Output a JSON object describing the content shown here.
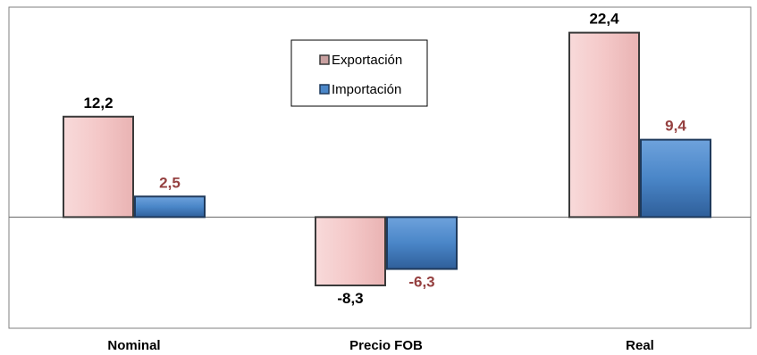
{
  "chart_data": {
    "type": "bar",
    "categories": [
      "Nominal",
      "Precio FOB",
      "Real"
    ],
    "series": [
      {
        "name": "Exportación",
        "values": [
          12.2,
          -8.3,
          22.4
        ],
        "labels": [
          "12,2",
          "-8,3",
          "22,4"
        ],
        "color": "#f2c4c4",
        "edge": "#3a3a3a",
        "label_color": "#000000"
      },
      {
        "name": "Importación",
        "values": [
          2.5,
          -6.3,
          9.4
        ],
        "labels": [
          "2,5",
          "-6,3",
          "9,4"
        ],
        "color": "#4a86c8",
        "edge": "#1f3a5c",
        "label_color": "#954040"
      }
    ],
    "ylim": [
      -13.5,
      25.5
    ],
    "legend_position": "top-center",
    "grid": false,
    "title": "",
    "xlabel": "",
    "ylabel": ""
  }
}
